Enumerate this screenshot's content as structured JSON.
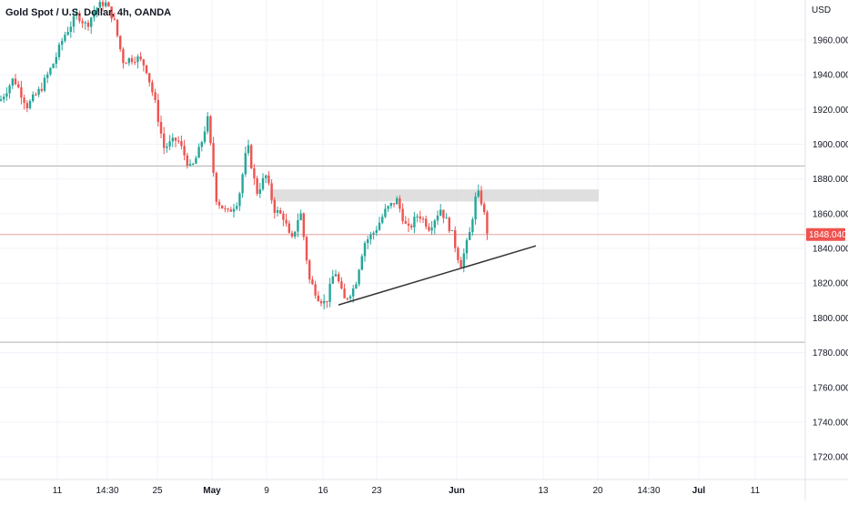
{
  "header": {
    "symbol_title": "Gold Spot / U.S. Dollar, 4h, OANDA",
    "currency": "USD"
  },
  "colors": {
    "up": "#26a69a",
    "down": "#ef5350",
    "trendline": "#333333",
    "level_line": "#e8a0a0",
    "zone_fill": "#d9d9d9",
    "price_badge": "#ef5350",
    "grid": "#f0f3fa",
    "axis_text": "#131722"
  },
  "chart_data": {
    "type": "candlestick",
    "title": "Gold Spot / U.S. Dollar, 4h, OANDA",
    "ylabel": "USD",
    "ylim": [
      1707,
      1983
    ],
    "y_ticks": [
      "1960.000",
      "1940.000",
      "1920.000",
      "1900.000",
      "1880.000",
      "1860.000",
      "1840.000",
      "1820.000",
      "1800.000",
      "1780.000",
      "1760.000",
      "1740.000",
      "1720.000"
    ],
    "x_ticks": [
      "11",
      "14:30",
      "25",
      "May",
      "9",
      "16",
      "23",
      "Jun",
      "13",
      "20",
      "14:30",
      "Jul",
      "11"
    ],
    "x_ticks_bold": [
      "May",
      "Jun",
      "Jul"
    ],
    "last_price": "1848.040",
    "price_series": [
      {
        "pos": 0,
        "value": 1925
      },
      {
        "pos": 15,
        "value": 1938
      },
      {
        "pos": 30,
        "value": 1922
      },
      {
        "pos": 45,
        "value": 1932
      },
      {
        "pos": 60,
        "value": 1948
      },
      {
        "pos": 70,
        "value": 1962
      },
      {
        "pos": 85,
        "value": 1975
      },
      {
        "pos": 95,
        "value": 1968
      },
      {
        "pos": 105,
        "value": 1978
      },
      {
        "pos": 115,
        "value": 1982
      },
      {
        "pos": 125,
        "value": 1972
      },
      {
        "pos": 135,
        "value": 1948
      },
      {
        "pos": 150,
        "value": 1950
      },
      {
        "pos": 160,
        "value": 1945
      },
      {
        "pos": 170,
        "value": 1925
      },
      {
        "pos": 180,
        "value": 1898
      },
      {
        "pos": 195,
        "value": 1903
      },
      {
        "pos": 210,
        "value": 1885
      },
      {
        "pos": 220,
        "value": 1898
      },
      {
        "pos": 228,
        "value": 1915
      },
      {
        "pos": 238,
        "value": 1868
      },
      {
        "pos": 250,
        "value": 1860
      },
      {
        "pos": 262,
        "value": 1868
      },
      {
        "pos": 272,
        "value": 1900
      },
      {
        "pos": 282,
        "value": 1872
      },
      {
        "pos": 292,
        "value": 1882
      },
      {
        "pos": 302,
        "value": 1862
      },
      {
        "pos": 312,
        "value": 1858
      },
      {
        "pos": 320,
        "value": 1843
      },
      {
        "pos": 330,
        "value": 1862
      },
      {
        "pos": 340,
        "value": 1822
      },
      {
        "pos": 350,
        "value": 1812
      },
      {
        "pos": 358,
        "value": 1808
      },
      {
        "pos": 368,
        "value": 1828
      },
      {
        "pos": 378,
        "value": 1810
      },
      {
        "pos": 390,
        "value": 1818
      },
      {
        "pos": 400,
        "value": 1843
      },
      {
        "pos": 412,
        "value": 1850
      },
      {
        "pos": 424,
        "value": 1862
      },
      {
        "pos": 436,
        "value": 1868
      },
      {
        "pos": 448,
        "value": 1850
      },
      {
        "pos": 460,
        "value": 1860
      },
      {
        "pos": 472,
        "value": 1852
      },
      {
        "pos": 484,
        "value": 1863
      },
      {
        "pos": 496,
        "value": 1850
      },
      {
        "pos": 506,
        "value": 1830
      },
      {
        "pos": 516,
        "value": 1848
      },
      {
        "pos": 524,
        "value": 1873
      },
      {
        "pos": 530,
        "value": 1866
      },
      {
        "pos": 536,
        "value": 1848
      }
    ],
    "horizontal_levels": [
      1887.5,
      1786
    ],
    "resistance_zone": {
      "from_pos": 297,
      "to_pos": 658,
      "low": 1867,
      "high": 1874
    },
    "trendline": {
      "from_pos": 372,
      "from_value": 1807.5,
      "to_pos": 589,
      "to_value": 1841.5
    }
  }
}
